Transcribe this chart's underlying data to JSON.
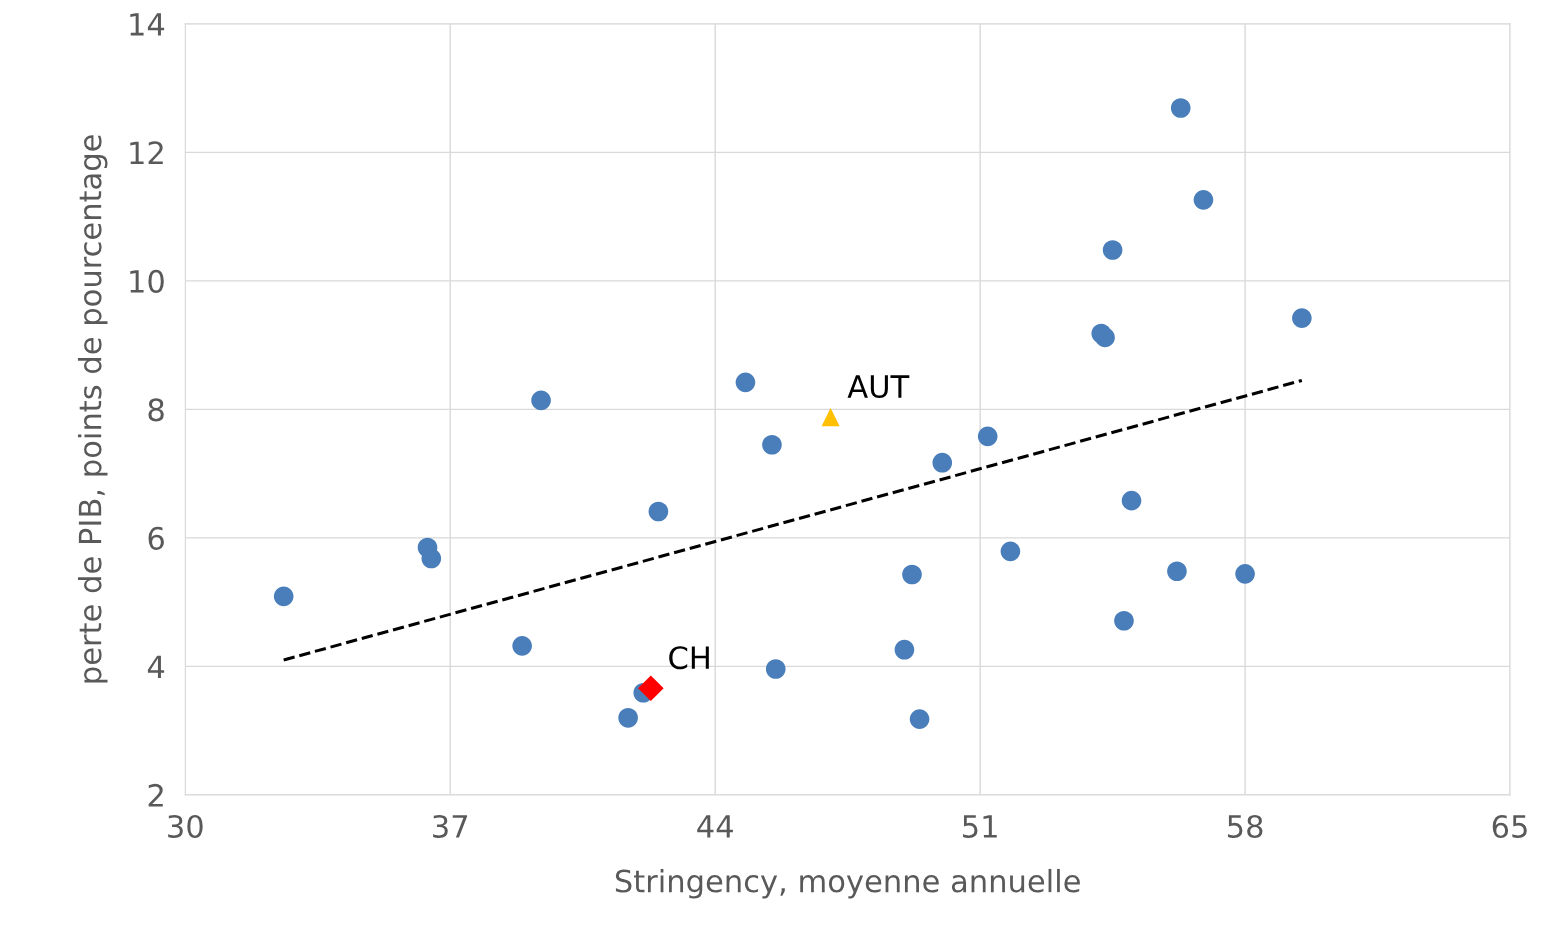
{
  "chart_data": {
    "type": "scatter",
    "xlabel": "Stringency, moyenne annuelle",
    "ylabel": "perte de PIB, points de pourcentage",
    "xlim": [
      30,
      65
    ],
    "xticks": [
      30,
      37,
      44,
      51,
      58,
      65
    ],
    "ylim": [
      2,
      14
    ],
    "yticks": [
      2,
      4,
      6,
      8,
      10,
      12,
      14
    ],
    "grid": true,
    "legend": false,
    "series": [
      {
        "type": "scatter",
        "marker": "circle",
        "color": "#4a7ebb",
        "x": [
          32.6,
          36.4,
          36.5,
          38.9,
          39.4,
          41.7,
          42.1,
          42.5,
          44.8,
          45.5,
          45.6,
          49.0,
          49.2,
          49.4,
          50.0,
          51.2,
          51.8,
          54.2,
          54.3,
          54.5,
          54.8,
          55.0,
          56.2,
          56.3,
          56.9,
          58.0,
          59.5
        ],
        "values": [
          5.09,
          5.85,
          5.68,
          4.32,
          8.14,
          3.2,
          3.59,
          6.41,
          8.42,
          7.45,
          3.96,
          4.26,
          5.43,
          3.18,
          7.17,
          7.58,
          5.79,
          9.18,
          9.12,
          10.48,
          4.71,
          6.58,
          5.48,
          12.69,
          11.26,
          5.44,
          9.42
        ]
      },
      {
        "type": "line",
        "line_style": "dashed",
        "marker": "none",
        "color": "#000000",
        "x": [
          32.6,
          59.5
        ],
        "values": [
          4.1,
          8.45
        ]
      },
      {
        "type": "scatter",
        "marker": "triangle",
        "color": "#ffc000",
        "x": [
          47.05
        ],
        "values": [
          7.88
        ]
      },
      {
        "type": "scatter",
        "marker": "diamond",
        "color": "#ff0000",
        "x": [
          42.3
        ],
        "values": [
          3.66
        ]
      }
    ],
    "annotations": [
      {
        "text": "AUT",
        "x": 47.05,
        "y": 7.88
      },
      {
        "text": "CH",
        "x": 42.3,
        "y": 3.66
      }
    ]
  }
}
